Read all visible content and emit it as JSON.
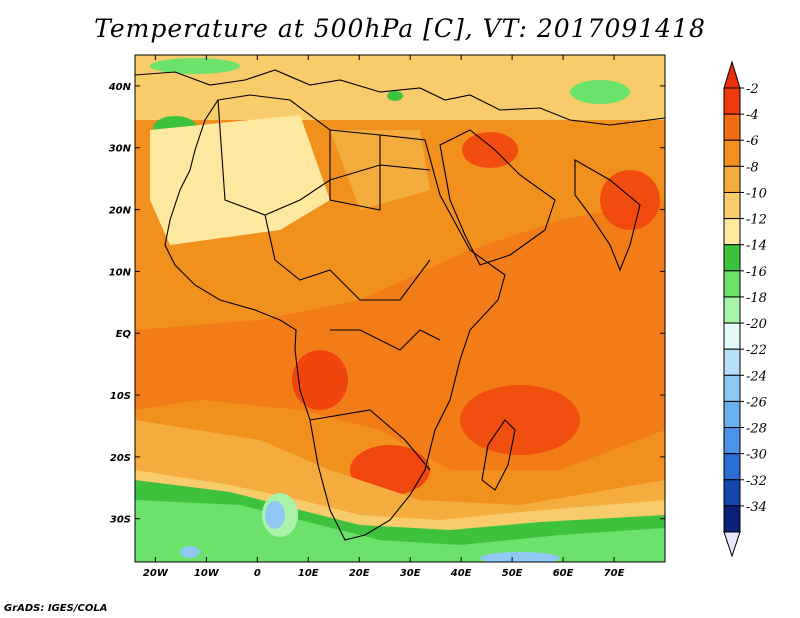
{
  "title": "Temperature at 500hPa [C], VT: 2017091418",
  "credit": "GrADS: IGES/COLA",
  "map": {
    "projection": "latlon",
    "lon_range": [
      -24,
      80
    ],
    "lat_range": [
      -37,
      45
    ],
    "x_ticks": [
      "20W",
      "10W",
      "0",
      "10E",
      "20E",
      "30E",
      "40E",
      "50E",
      "60E",
      "70E"
    ],
    "x_tick_values": [
      -20,
      -10,
      0,
      10,
      20,
      30,
      40,
      50,
      60,
      70
    ],
    "y_ticks": [
      "40N",
      "30N",
      "20N",
      "10N",
      "EQ",
      "10S",
      "20S",
      "30S"
    ],
    "y_tick_values": [
      40,
      30,
      20,
      10,
      0,
      -10,
      -20,
      -30
    ]
  },
  "colorbar": {
    "labels": [
      "-2",
      "-4",
      "-6",
      "-8",
      "-10",
      "-12",
      "-14",
      "-16",
      "-18",
      "-20",
      "-22",
      "-24",
      "-26",
      "-28",
      "-30",
      "-32",
      "-34"
    ],
    "colors": [
      "#f03c0c",
      "#f26c14",
      "#f2901e",
      "#f4ac3e",
      "#f8cc6a",
      "#fde8a0",
      "#3ec23e",
      "#6ce16c",
      "#a8f3a8",
      "#e4fafa",
      "#b6e0fa",
      "#90c8f4",
      "#6ab0ee",
      "#4c92e6",
      "#2a6ed6",
      "#1448ae",
      "#0c2078"
    ],
    "top_arrow_color": "#e8300a",
    "bottom_arrow_color": "#e6e6fc"
  }
}
